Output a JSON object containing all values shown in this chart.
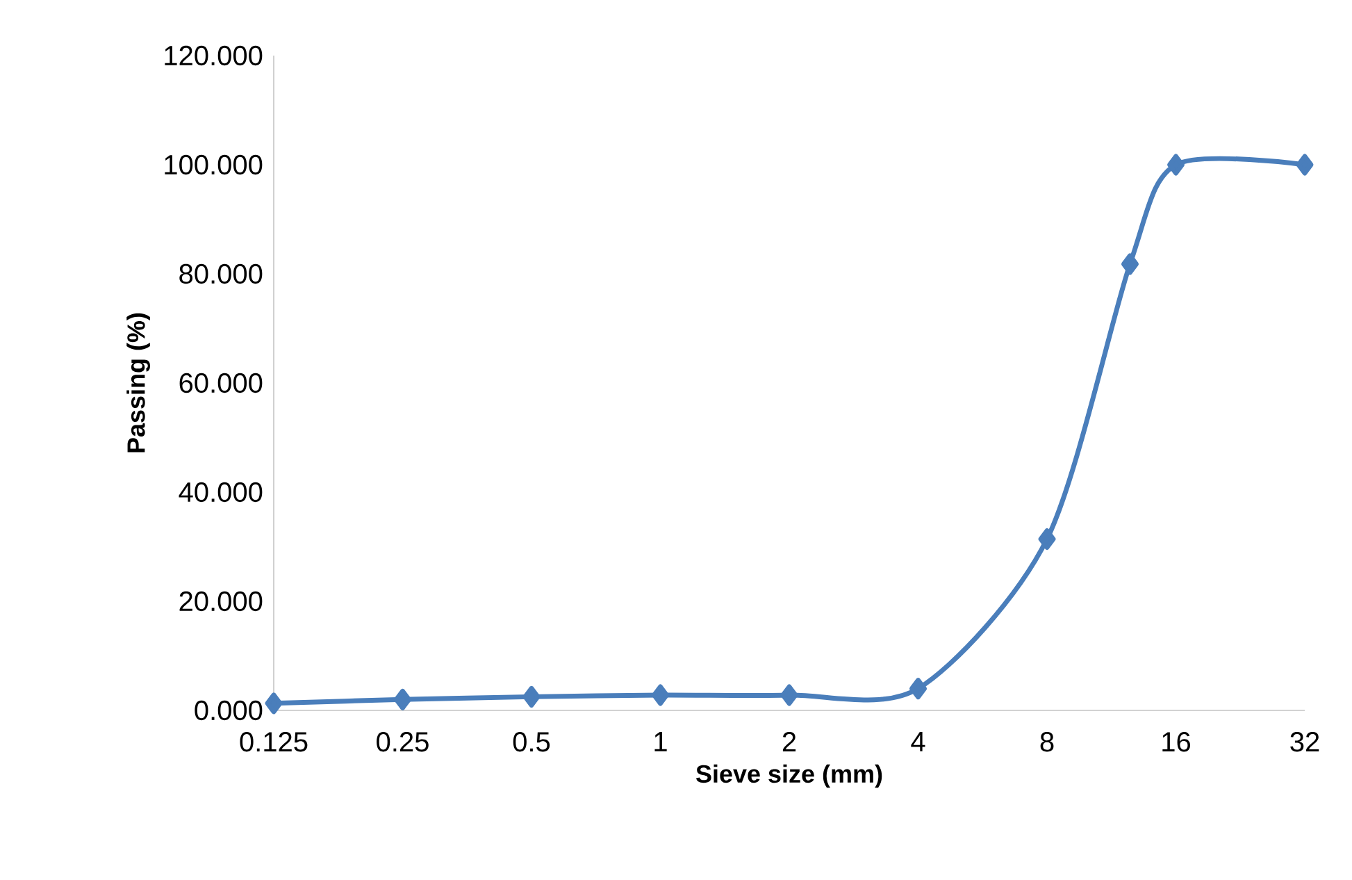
{
  "chart_data": {
    "type": "line",
    "xlabel": "Sieve size (mm)",
    "ylabel": "Passing (%)",
    "x": [
      0.125,
      0.25,
      0.5,
      1,
      2,
      4,
      8,
      12.5,
      16,
      32
    ],
    "series": [
      {
        "color": "#4a7ebb",
        "values": [
          1.3,
          2.0,
          2.5,
          2.8,
          2.8,
          4.0,
          31.4,
          81.8,
          100,
          100
        ]
      }
    ],
    "log": "x",
    "marker": "diamond",
    "line_style": "solid",
    "xlim": [
      0.125,
      32
    ],
    "ylim": [
      0,
      120
    ],
    "xticks": [
      0.125,
      0.25,
      0.5,
      1,
      2,
      4,
      8,
      16,
      32
    ],
    "yticks": [
      {
        "value": 0,
        "label": "0.000"
      },
      {
        "value": 20,
        "label": "20.000"
      },
      {
        "value": 40,
        "label": "40.000"
      },
      {
        "value": 60,
        "label": "60.000"
      },
      {
        "value": 80,
        "label": "80.000"
      },
      {
        "value": 100,
        "label": "100.000"
      },
      {
        "value": 120,
        "label": "120.000"
      }
    ]
  }
}
